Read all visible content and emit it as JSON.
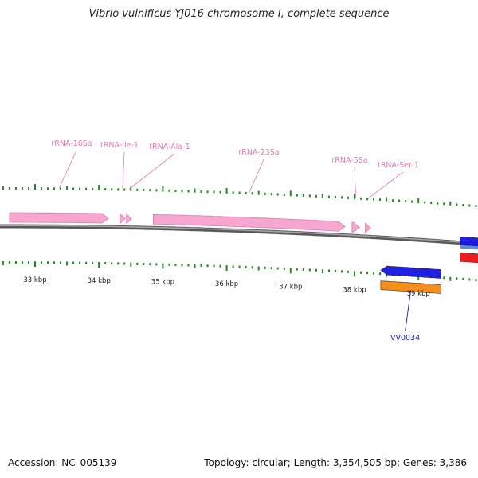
{
  "title": "Vibrio vulnificus YJ016 chromosome I, complete sequence",
  "footer": {
    "accession": "Accession: NC_005139",
    "summary": "Topology: circular; Length: 3,354,505 bp; Genes: 3,386"
  },
  "colors": {
    "rna": "#f7a6cf",
    "rna_label": "#e07ab0",
    "tick": "#1d8a1d",
    "backbone": "#808080",
    "gene_blue": "#1515e0",
    "gene_orange": "#f58a0f",
    "gene_red": "#ee1111",
    "gene_steel": "#5b8fc7",
    "gene_label": "#1a1aa8"
  },
  "scale": {
    "unit": "kbp",
    "labels": [
      {
        "kbp": 33,
        "text": "33 kbp"
      },
      {
        "kbp": 34,
        "text": "34 kbp"
      },
      {
        "kbp": 35,
        "text": "35 kbp"
      },
      {
        "kbp": 36,
        "text": "36 kbp"
      },
      {
        "kbp": 37,
        "text": "37 kbp"
      },
      {
        "kbp": 38,
        "text": "38 kbp"
      },
      {
        "kbp": 39,
        "text": "39 kbp"
      }
    ]
  },
  "features": [
    {
      "name": "rRNA-16Sa",
      "label": "rRNA-16Sa",
      "type": "rRNA",
      "strand": "+",
      "start_kbp": 32.6,
      "end_kbp": 34.15
    },
    {
      "name": "tRNA-Ile-1",
      "label": "tRNA-Ile-1",
      "type": "tRNA",
      "strand": "+",
      "start_kbp": 34.33,
      "end_kbp": 34.41
    },
    {
      "name": "tRNA-Ala-1",
      "label": "tRNA-Ala-1",
      "type": "tRNA",
      "strand": "+",
      "start_kbp": 34.43,
      "end_kbp": 34.51
    },
    {
      "name": "rRNA-23Sa",
      "label": "rRNA-23Sa",
      "type": "rRNA",
      "strand": "+",
      "start_kbp": 34.85,
      "end_kbp": 37.85
    },
    {
      "name": "rRNA-5Sa",
      "label": "rRNA-5Sa",
      "type": "rRNA",
      "strand": "+",
      "start_kbp": 37.96,
      "end_kbp": 38.08
    },
    {
      "name": "tRNA-Ser-1",
      "label": "tRNA-Ser-1",
      "type": "tRNA",
      "strand": "+",
      "start_kbp": 38.17,
      "end_kbp": 38.25
    }
  ],
  "genes": [
    {
      "name": "VV0034",
      "label": "VV0034",
      "kind": "cds",
      "strand": "-",
      "start_kbp": 38.41,
      "end_kbp": 39.35
    },
    {
      "name": "VV0034-orange",
      "kind": "cogs",
      "strand": "-",
      "start_kbp": 38.41,
      "end_kbp": 39.35
    },
    {
      "name": "next-gene-blue",
      "kind": "cds",
      "strand": "-",
      "start_kbp": 39.65,
      "end_kbp": 40.2
    },
    {
      "name": "next-gene-red",
      "kind": "red",
      "strand": "-",
      "start_kbp": 39.65,
      "end_kbp": 40.2
    }
  ]
}
